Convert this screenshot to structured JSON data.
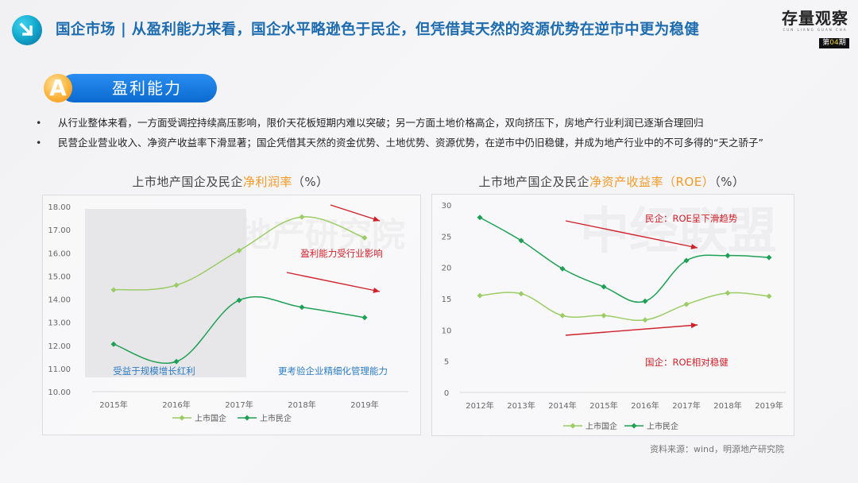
{
  "header": {
    "icon": "arrow-down-right-icon",
    "title": "国企市场 | 从盈利能力来看，国企水平略逊色于民企，但凭借其天然的资源优势在逆市中更为稳健",
    "brand": {
      "title": "存量观察",
      "subtitle": "CUN LIANG GUAN CHA",
      "issue_prefix": "第",
      "issue_number": "04",
      "issue_suffix": "期"
    }
  },
  "section": {
    "badge": "A",
    "label": "盈利能力"
  },
  "bullets": [
    "从行业整体来看，一方面受调控持续高压影响，限价天花板短期内难以突破；另一方面土地价格高企，双向挤压下，房地产行业利润已逐渐合理回归",
    "民营企业营业收入、净资产收益率下滑显著；国企凭借其天然的资金优势、土地优势、资源优势，在逆市中仍旧稳健，并成为地产行业中的不可多得的“天之骄子”"
  ],
  "watermarks": [
    "地产研究院",
    "中经联盟"
  ],
  "colors": {
    "title_blue": "#1d6cb0",
    "highlight_orange": "#f39a25",
    "soe_line": "#9ccc65",
    "private_line": "#1fa055",
    "annotation_red": "#d0202a",
    "annotation_blue": "#2d7cc4"
  },
  "charts": {
    "left": {
      "title_prefix": "上市地产国企及民企",
      "title_highlight": "净利润率",
      "title_suffix": "（%）"
    },
    "right": {
      "title_prefix": "上市地产国企及民企",
      "title_highlight": "净资产收益率（ROE）",
      "title_suffix": "（%）"
    }
  },
  "source": "资料来源：wind，明源地产研究院",
  "chart_data": [
    {
      "type": "line",
      "title": "上市地产国企及民企净利润率（%）",
      "xlabel": "",
      "ylabel": "",
      "categories": [
        "2015年",
        "2016年",
        "2017年",
        "2018年",
        "2019年"
      ],
      "series": [
        {
          "name": "上市国企",
          "values": [
            14.4,
            14.6,
            16.1,
            17.55,
            16.65
          ]
        },
        {
          "name": "上市民企",
          "values": [
            12.05,
            11.3,
            13.95,
            13.65,
            13.2
          ]
        }
      ],
      "ylim": [
        10,
        18
      ],
      "yticks": [
        "10.00",
        "11.00",
        "12.00",
        "13.00",
        "14.00",
        "15.00",
        "16.00",
        "17.00",
        "18.00"
      ],
      "grid": false,
      "legend_position": "bottom",
      "annotations": [
        {
          "text": "盈利能力受行业影响",
          "color": "#d0202a"
        },
        {
          "text": "受益于规模增长红利",
          "color": "#2d7cc4"
        },
        {
          "text": "更考验企业精细化管理能力",
          "color": "#2d7cc4"
        }
      ]
    },
    {
      "type": "line",
      "title": "上市地产国企及民企净资产收益率（ROE）（%）",
      "xlabel": "",
      "ylabel": "",
      "categories": [
        "2012年",
        "2013年",
        "2014年",
        "2015年",
        "2016年",
        "2017年",
        "2018年",
        "2019年"
      ],
      "series": [
        {
          "name": "上市国企",
          "values": [
            15.5,
            15.8,
            12.3,
            12.3,
            11.6,
            14.1,
            15.9,
            15.4
          ]
        },
        {
          "name": "上市民企",
          "values": [
            28.0,
            24.3,
            19.8,
            16.9,
            14.6,
            21.1,
            21.9,
            21.6
          ]
        }
      ],
      "ylim": [
        0,
        30
      ],
      "yticks": [
        "0",
        "5",
        "10",
        "15",
        "20",
        "25",
        "30"
      ],
      "grid": false,
      "legend_position": "bottom",
      "annotations": [
        {
          "text": "民企：ROE呈下滑趋势",
          "color": "#d0202a"
        },
        {
          "text": "国企：ROE相对稳健",
          "color": "#d0202a"
        }
      ]
    }
  ]
}
